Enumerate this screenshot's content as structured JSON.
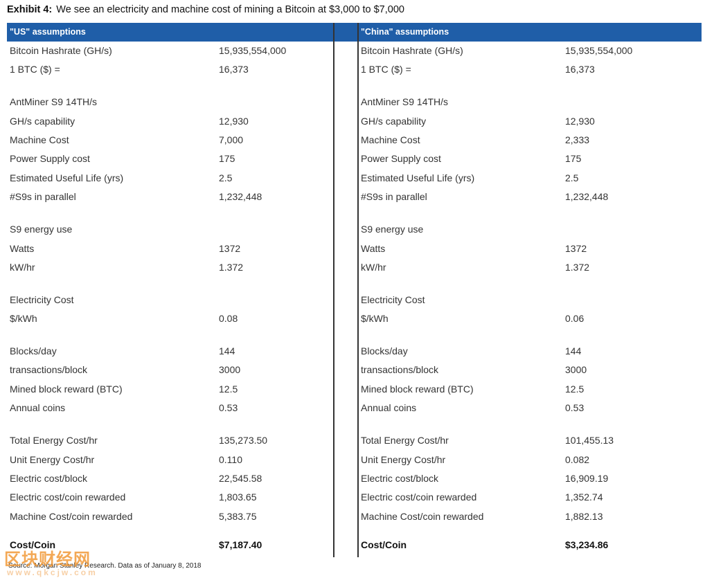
{
  "title": {
    "label": "Exhibit 4:",
    "text": "We see an electricity and machine cost of mining a Bitcoin at $3,000 to $7,000"
  },
  "panels": [
    {
      "header": "\"US\" assumptions",
      "sections": [
        [
          [
            "Bitcoin Hashrate (GH/s)",
            "15,935,554,000"
          ],
          [
            "1 BTC ($) =",
            "16,373"
          ]
        ],
        [
          [
            "AntMiner S9 14TH/s"
          ],
          [
            "GH/s capability",
            "12,930"
          ],
          [
            "Machine Cost",
            "7,000"
          ],
          [
            "Power Supply cost",
            "175"
          ],
          [
            "Estimated Useful Life (yrs)",
            "2.5"
          ],
          [
            "#S9s in parallel",
            "1,232,448"
          ]
        ],
        [
          [
            "S9 energy use"
          ],
          [
            "Watts",
            "1372"
          ],
          [
            "kW/hr",
            "1.372"
          ]
        ],
        [
          [
            "Electricity Cost"
          ],
          [
            "$/kWh",
            "0.08"
          ]
        ],
        [
          [
            "Blocks/day",
            "144"
          ],
          [
            "transactions/block",
            "3000"
          ],
          [
            "Mined block reward (BTC)",
            "12.5"
          ],
          [
            "Annual coins",
            "0.53"
          ]
        ],
        [
          [
            "Total Energy Cost/hr",
            "135,273.50"
          ],
          [
            "Unit Energy Cost/hr",
            "0.110"
          ],
          [
            "Electric cost/block",
            "22,545.58"
          ],
          [
            "Electric cost/coin rewarded",
            "1,803.65"
          ],
          [
            "Machine Cost/coin rewarded",
            "5,383.75"
          ]
        ]
      ],
      "total": [
        "Cost/Coin",
        "$7,187.40"
      ]
    },
    {
      "header": "\"China\" assumptions",
      "sections": [
        [
          [
            "Bitcoin Hashrate (GH/s)",
            "15,935,554,000"
          ],
          [
            "1 BTC ($) =",
            "16,373"
          ]
        ],
        [
          [
            "AntMiner S9 14TH/s"
          ],
          [
            "GH/s capability",
            "12,930"
          ],
          [
            "Machine Cost",
            "2,333"
          ],
          [
            "Power Supply cost",
            "175"
          ],
          [
            "Estimated Useful Life (yrs)",
            "2.5"
          ],
          [
            "#S9s in parallel",
            "1,232,448"
          ]
        ],
        [
          [
            "S9 energy use"
          ],
          [
            "Watts",
            "1372"
          ],
          [
            "kW/hr",
            "1.372"
          ]
        ],
        [
          [
            "Electricity Cost"
          ],
          [
            "$/kWh",
            "0.06"
          ]
        ],
        [
          [
            "Blocks/day",
            "144"
          ],
          [
            "transactions/block",
            "3000"
          ],
          [
            "Mined block reward (BTC)",
            "12.5"
          ],
          [
            "Annual coins",
            "0.53"
          ]
        ],
        [
          [
            "Total Energy Cost/hr",
            "101,455.13"
          ],
          [
            "Unit Energy Cost/hr",
            "0.082"
          ],
          [
            "Electric cost/block",
            "16,909.19"
          ],
          [
            "Electric cost/coin rewarded",
            "1,352.74"
          ],
          [
            "Machine Cost/coin rewarded",
            "1,882.13"
          ]
        ]
      ],
      "total": [
        "Cost/Coin",
        "$3,234.86"
      ]
    }
  ],
  "source": "Source: Morgan Stanley Research. Data as of January 8, 2018",
  "watermark": {
    "name": "区块财经网",
    "url": "www.qkcjw.com"
  }
}
